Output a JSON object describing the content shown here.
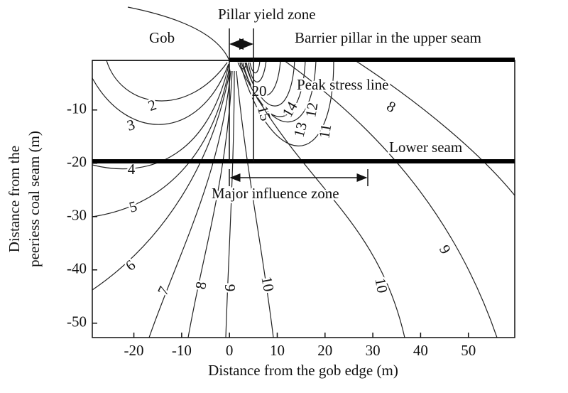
{
  "chart_data": {
    "type": "contour",
    "xlabel": "Distance from the gob edge (m)",
    "ylabel": [
      "Distance from the",
      "peeriess coal seam (m)"
    ],
    "xlim": [
      -28.7,
      59.7
    ],
    "ylim": [
      -52.7,
      -0.7
    ],
    "xticks": [
      -20,
      -10,
      0,
      10,
      20,
      30,
      40,
      50
    ],
    "yticks": [
      -10,
      -20,
      -30,
      -40,
      -50
    ],
    "contour_levels": [
      2,
      3,
      4,
      5,
      6,
      7,
      8,
      9,
      10,
      11,
      12,
      13,
      14,
      15,
      20,
      10,
      9,
      8
    ],
    "color": "#222222",
    "annotations": [
      "Pillar yield zone",
      "Gob",
      "Barrier pillar in the upper seam",
      "Peak stress line",
      "Lower seam",
      "Major influence zone"
    ]
  }
}
